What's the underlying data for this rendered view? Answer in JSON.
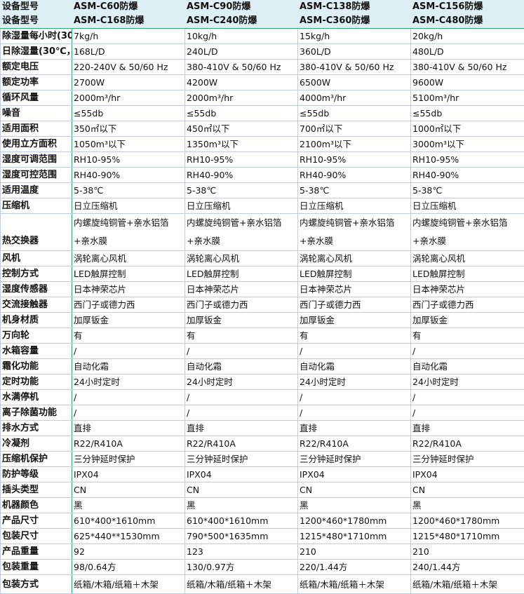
{
  "header_rows": [
    {
      "label": "设备型号",
      "values": [
        "ASM-C60防爆",
        "ASM-C90防爆",
        "ASM-C138防爆",
        "ASM-C156防爆"
      ]
    },
    {
      "label": "设备型号",
      "values": [
        "ASM-C168防爆",
        "ASM-C240防爆",
        "ASM-C360防爆",
        "ASM-C480防爆"
      ]
    }
  ],
  "rows": [
    {
      "label": "除湿量每小时(30",
      "values": [
        "7kg/h",
        "10kg/h",
        "15kg/h",
        "20kg/h"
      ]
    },
    {
      "label": "日除湿量(30℃，",
      "values": [
        "168L/D",
        "240L/D",
        "360L/D",
        "480L/D"
      ]
    },
    {
      "label": "额定电压",
      "values": [
        "220-240V & 50/60 Hz",
        "380-410V & 50/60 Hz",
        "380-410V & 50/60 Hz",
        "380-410V & 50/60 Hz"
      ]
    },
    {
      "label": "额定功率",
      "values": [
        "2700W",
        "4200W",
        "6500W",
        "9600W"
      ]
    },
    {
      "label": "循环风量",
      "values": [
        "2000m³/hr",
        "2000m³/hr",
        "4000m³/hr",
        "5100m³/hr"
      ]
    },
    {
      "label": "噪音",
      "values": [
        "≤55db",
        "≤55db",
        "≤55db",
        "≤55db"
      ]
    },
    {
      "label": "适用面积",
      "values": [
        "350㎡以下",
        "450㎡以下",
        "700㎡以下",
        "1000㎡以下"
      ]
    },
    {
      "label": "使用立方面积",
      "values": [
        "1050m³以下",
        "1350m³以下",
        "2100m³以下",
        "3000m³以下"
      ]
    },
    {
      "label": "湿度可调范围",
      "values": [
        "RH10-95%",
        "RH10-95%",
        "RH10-95%",
        "RH10-95%"
      ]
    },
    {
      "label": "湿度可控范围",
      "values": [
        "RH40-90%",
        "RH40-90%",
        "RH40-90%",
        "RH40-90%"
      ]
    },
    {
      "label": "适用温度",
      "values": [
        "5-38℃",
        "5-38℃",
        "5-38℃",
        "5-38℃"
      ]
    },
    {
      "label": "压缩机",
      "values": [
        "日立压缩机",
        "日立压缩机",
        "日立压缩机",
        "日立压缩机"
      ]
    },
    {
      "label": "热交换器",
      "values": [
        "内螺旋纯铜管+亲水铝箔+亲水膜",
        "内螺旋纯铜管+亲水铝箔+亲水膜",
        "内螺旋纯铜管+亲水铝箔+亲水膜",
        "内螺旋纯铜管+亲水铝箔+亲水膜"
      ],
      "tall": true
    },
    {
      "label": "风机",
      "values": [
        "涡轮离心风机",
        "涡轮离心风机",
        "涡轮离心风机",
        "涡轮离心风机"
      ]
    },
    {
      "label": "控制方式",
      "values": [
        "LED触屏控制",
        "LED触屏控制",
        "LED触屏控制",
        "LED触屏控制"
      ]
    },
    {
      "label": "湿度传感器",
      "values": [
        "日本神荣芯片",
        "日本神荣芯片",
        "日本神荣芯片",
        "日本神荣芯片"
      ]
    },
    {
      "label": "交流接触器",
      "values": [
        "西门子或德力西",
        "西门子或德力西",
        "西门子或德力西",
        "西门子或德力西"
      ]
    },
    {
      "label": "机身材质",
      "values": [
        "加厚钣金",
        "加厚钣金",
        "加厚钣金",
        "加厚钣金"
      ]
    },
    {
      "label": "万向轮",
      "values": [
        "有",
        "有",
        "有",
        "有"
      ]
    },
    {
      "label": "水箱容量",
      "values": [
        "/",
        "/",
        "/",
        "/"
      ]
    },
    {
      "label": "霜化功能",
      "values": [
        "自动化霜",
        "自动化霜",
        "自动化霜",
        "自动化霜"
      ]
    },
    {
      "label": "定时功能",
      "values": [
        "24小时定时",
        "24小时定时",
        "24小时定时",
        "24小时定时"
      ]
    },
    {
      "label": "水满停机",
      "values": [
        "/",
        "/",
        "/",
        "/"
      ]
    },
    {
      "label": "离子除菌功能",
      "values": [
        "/",
        "/",
        "/",
        "/"
      ]
    },
    {
      "label": "排水方式",
      "values": [
        "直排",
        "直排",
        "直排",
        "直排"
      ]
    },
    {
      "label": "冷凝剂",
      "values": [
        "R22/R410A",
        "R22/R410A",
        "R22/R410A",
        "R22/R410A"
      ]
    },
    {
      "label": "压缩机保护",
      "values": [
        "三分钟延时保护",
        "三分钟延时保护",
        "三分钟延时保护",
        "三分钟延时保护"
      ]
    },
    {
      "label": "防护等级",
      "values": [
        "IPX04",
        "IPX04",
        "IPX04",
        "IPX04"
      ]
    },
    {
      "label": "插头类型",
      "values": [
        "CN",
        "CN",
        "CN",
        "CN"
      ]
    },
    {
      "label": "机器颜色",
      "values": [
        "黑",
        "黑",
        "黑",
        "黑"
      ]
    },
    {
      "label": "产品尺寸",
      "values": [
        "610*400*1610mm",
        "610*400*1610mm",
        "1200*460*1780mm",
        "1200*460*1780mm"
      ]
    },
    {
      "label": "包装尺寸",
      "values": [
        "625*440**1530mm",
        "790*500*1635mm",
        "1215*480*1710mm",
        "1215*480*1710mm"
      ]
    },
    {
      "label": "产品重量",
      "values": [
        "92",
        "123",
        "210",
        "210"
      ]
    },
    {
      "label": "包装重量",
      "values": [
        "98/0.64方",
        "130/0.97方",
        "220/1.44方",
        "240/1.44方"
      ]
    },
    {
      "label": "包装方式",
      "values": [
        "纸箱/木箱/纸箱＋木架",
        "纸箱/木箱/纸箱＋木架",
        "纸箱/木箱/纸箱＋木架",
        "纸箱/木箱/纸箱＋木架"
      ]
    }
  ]
}
